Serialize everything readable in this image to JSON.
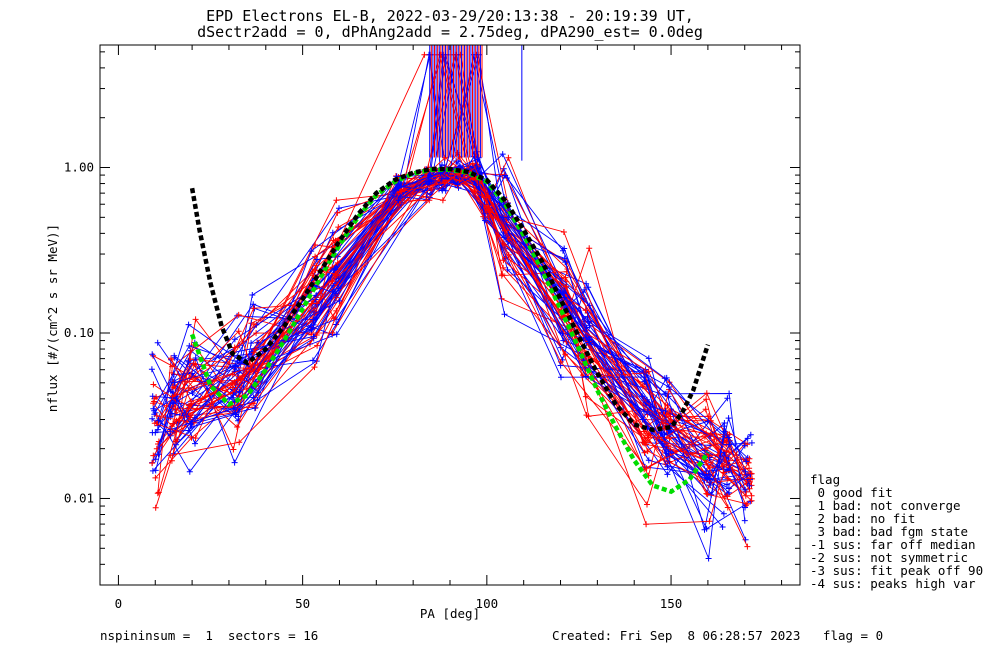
{
  "title": {
    "line1": "EPD Electrons EL-B, 2022-03-29/20:13:38 - 20:19:39 UT,",
    "line2": "dSectr2add = 0, dPhAng2add = 2.75deg, dPA290_est=   0.0deg"
  },
  "legend": {
    "lines": [
      "flag",
      " 0 good fit",
      " 1 bad: not converge",
      " 2 bad: no fit",
      " 3 bad: bad fgm state",
      "-1 sus: far off median",
      "-2 sus: not symmetric",
      "-3 sus: fit peak off 90",
      "-4 sus: peaks high var"
    ]
  },
  "footer": {
    "left": "nspininsum =  1  sectors = 16",
    "right": "Created: Fri Sep  8 06:28:57 2023   flag = 0"
  },
  "colors": {
    "blue": "#0000ff",
    "red": "#ff0000",
    "green": "#00dd00",
    "black": "#000000"
  },
  "chart_data": {
    "type": "line",
    "title": "EPD Electrons EL-B, 2022-03-29/20:13:38 - 20:19:39 UT,",
    "xlabel": "PA [deg]",
    "ylabel": "nflux [#/(cm^2 s sr MeV)]",
    "xlim": [
      -5,
      185
    ],
    "ylim": [
      0.003,
      5.5
    ],
    "yscale": "log",
    "xticks": [
      0,
      50,
      100,
      150
    ],
    "xtick_labels": [
      "0",
      "50",
      "100",
      "150"
    ],
    "yticks": [
      0.01,
      0.1,
      1.0
    ],
    "ytick_labels": [
      "0.01",
      "0.10",
      "1.00"
    ],
    "pa_sectors": [
      10,
      15,
      20,
      32,
      37,
      53,
      59,
      76,
      84,
      88,
      92,
      97,
      100,
      105,
      121,
      127,
      143,
      149,
      160,
      165,
      171
    ],
    "median_profile": {
      "x": [
        10,
        20,
        32,
        53,
        76,
        88,
        97,
        100,
        121,
        143,
        160,
        171
      ],
      "y": [
        0.03,
        0.04,
        0.045,
        0.14,
        0.7,
        0.9,
        0.95,
        0.6,
        0.15,
        0.03,
        0.018,
        0.015
      ]
    },
    "series": [
      {
        "name": "fit (green)",
        "style": "dashed",
        "x": [
          20,
          25,
          30,
          35,
          40,
          45,
          50,
          55,
          60,
          65,
          70,
          75,
          80,
          85,
          90,
          95,
          100,
          105,
          110,
          115,
          120,
          125,
          130,
          135,
          140,
          145,
          150,
          155,
          160
        ],
        "y": [
          0.098,
          0.048,
          0.037,
          0.042,
          0.06,
          0.09,
          0.14,
          0.22,
          0.34,
          0.5,
          0.68,
          0.82,
          0.92,
          0.97,
          0.97,
          0.93,
          0.82,
          0.6,
          0.39,
          0.24,
          0.14,
          0.08,
          0.045,
          0.027,
          0.017,
          0.012,
          0.011,
          0.013,
          0.019
        ]
      },
      {
        "name": "fit (black)",
        "style": "dashed",
        "x": [
          20,
          22,
          25,
          28,
          31,
          35,
          40,
          45,
          50,
          55,
          60,
          65,
          70,
          75,
          80,
          85,
          90,
          95,
          100,
          105,
          110,
          115,
          120,
          125,
          130,
          135,
          140,
          145,
          150,
          153,
          156,
          160
        ],
        "y": [
          0.75,
          0.42,
          0.2,
          0.11,
          0.075,
          0.066,
          0.08,
          0.11,
          0.16,
          0.24,
          0.36,
          0.52,
          0.7,
          0.84,
          0.93,
          0.98,
          0.98,
          0.94,
          0.84,
          0.63,
          0.42,
          0.27,
          0.16,
          0.095,
          0.057,
          0.037,
          0.028,
          0.026,
          0.027,
          0.033,
          0.045,
          0.085
        ]
      }
    ],
    "legend_title": "flag"
  }
}
